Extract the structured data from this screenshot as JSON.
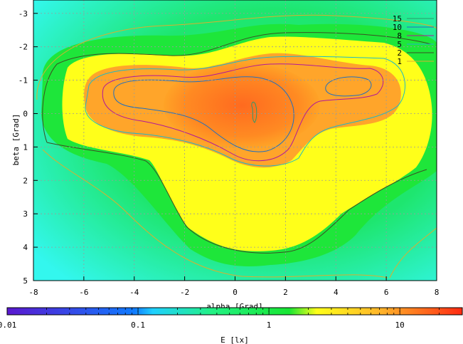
{
  "chart_data": {
    "type": "heatmap",
    "title": "",
    "xlabel": "alpha [Grad]",
    "ylabel": "beta [Grad]",
    "xlim": [
      -8,
      8
    ],
    "ylim": [
      -3.4,
      5
    ],
    "y_inverted": true,
    "x_ticks": [
      "-8",
      "-6",
      "-4",
      "-2",
      "0",
      "2",
      "4",
      "6",
      "8"
    ],
    "y_ticks": [
      "-3",
      "-2",
      "-1",
      "0",
      "1",
      "2",
      "3",
      "4",
      "5"
    ],
    "grid": true,
    "colorbar": {
      "label": "E [lx]",
      "scale": "log",
      "range": [
        0.01,
        30
      ],
      "ticks": [
        "0.01",
        "0.1",
        "1",
        "10"
      ]
    },
    "colors": {
      "cyan": "#33f7ee",
      "spring": "#22f184",
      "green": "#1ee63a",
      "yellow": "#ffff1a",
      "orange": "#ffa52a",
      "red": "#ff6a1f"
    },
    "contour_levels": [
      "15",
      "10",
      "8",
      "5",
      "2",
      "1"
    ],
    "contour_colors": [
      "#2c9a6b",
      "#1f6fbf",
      "#b0189a",
      "#1fb8c4",
      "#3b4f22",
      "#d8b02f"
    ],
    "legend_position": "top-right",
    "peak": {
      "alpha": 0.8,
      "beta": 0.1,
      "E": 17
    }
  }
}
